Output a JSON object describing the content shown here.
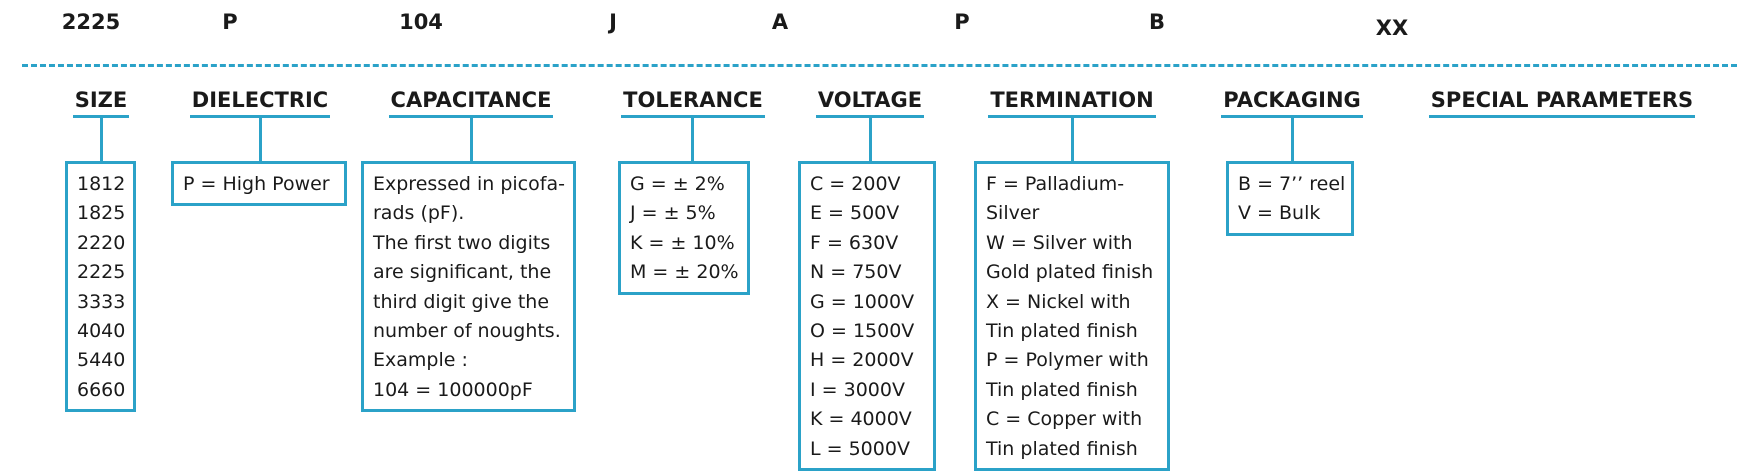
{
  "codes": [
    "2225",
    "P",
    "104",
    "J",
    "A",
    "P",
    "B",
    "XX"
  ],
  "headings": [
    "SIZE",
    "DIELECTRIC",
    "CAPACITANCE",
    "TOLERANCE",
    "VOLTAGE",
    "TERMINATION",
    "PACKAGING",
    "SPECIAL PARAMETERS"
  ],
  "size_options": [
    "1812",
    "1825",
    "2220",
    "2225",
    "3333",
    "4040",
    "5440",
    "6660"
  ],
  "dielectric_options": [
    "P = High Power"
  ],
  "capacitance_text": [
    "Expressed in picofa-",
    "rads (pF).",
    "The first two digits",
    "are significant, the",
    "third digit give the",
    "number of noughts.",
    "Example :",
    "104 = 100000pF"
  ],
  "tolerance_options": [
    "G = ± 2%",
    "J = ± 5%",
    "K = ± 10%",
    "M = ± 20%"
  ],
  "voltage_options": [
    "C = 200V",
    "E = 500V",
    "F = 630V",
    "N = 750V",
    "G = 1000V",
    "O = 1500V",
    "H = 2000V",
    "I = 3000V",
    "K = 4000V",
    "L = 5000V"
  ],
  "termination_options": [
    "F = Palladium-",
    "Silver",
    "W = Silver with",
    "Gold plated finish",
    "X = Nickel with",
    "Tin plated finish",
    "P = Polymer with",
    "Tin plated finish",
    "C = Copper with",
    "Tin plated finish"
  ],
  "packaging_options": [
    "B = 7’’ reel",
    "V = Bulk"
  ],
  "colors": {
    "accent": "#2ba2c8",
    "text": "#1a1a1a",
    "background": "#ffffff"
  }
}
